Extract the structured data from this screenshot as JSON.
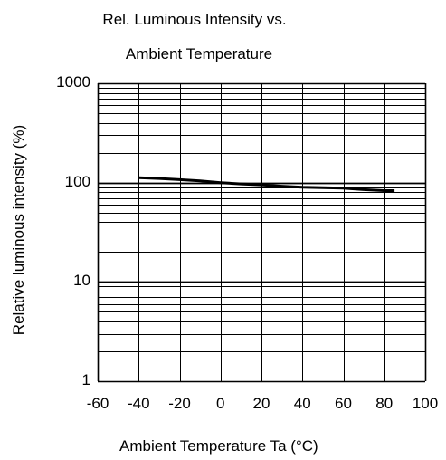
{
  "chart_data": {
    "type": "line",
    "title_lines": [
      "Rel. Luminous Intensity vs.",
      "Ambient Temperature"
    ],
    "xlabel": "Ambient Temperature Ta (°C)",
    "ylabel": "Relative luminous intensity (%)",
    "xlim": [
      -60,
      100
    ],
    "ylim": [
      1,
      1000
    ],
    "yscale": "log",
    "grid": true,
    "x_ticks": [
      "-60",
      "-40",
      "-20",
      "0",
      "20",
      "40",
      "60",
      "80",
      "100"
    ],
    "y_ticks": [
      "1",
      "10",
      "100",
      "1000"
    ],
    "series": [
      {
        "x": [
          -40,
          -30,
          -20,
          -10,
          0,
          10,
          20,
          30,
          40,
          50,
          60,
          70,
          80,
          85
        ],
        "y": [
          112,
          110,
          107,
          104,
          100,
          97,
          95,
          92,
          90,
          89,
          88,
          85,
          83,
          83
        ]
      }
    ]
  }
}
